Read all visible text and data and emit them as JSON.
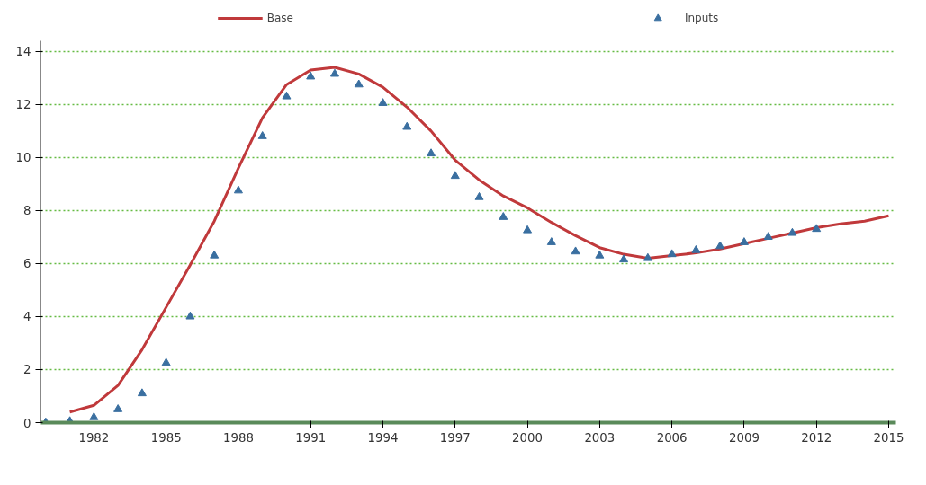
{
  "chart_data": {
    "type": "line",
    "xlim": [
      1979.8,
      2015.3
    ],
    "xticks": [
      1982,
      1985,
      1988,
      1991,
      1994,
      1997,
      2000,
      2003,
      2006,
      2009,
      2012,
      2015
    ],
    "ylim": [
      0,
      14.4
    ],
    "yticks": [
      0,
      2,
      4,
      6,
      8,
      10,
      12,
      14
    ],
    "grid": "y",
    "legend": "top",
    "series": [
      {
        "name": "Base",
        "color": "#c0393b",
        "marker": "none",
        "x": [
          1981,
          1982,
          1983,
          1984,
          1985,
          1986,
          1987,
          1988,
          1989,
          1990,
          1991,
          1992,
          1993,
          1994,
          1995,
          1996,
          1997,
          1998,
          1999,
          2000,
          2001,
          2002,
          2003,
          2004,
          2005,
          2006,
          2007,
          2008,
          2009,
          2010,
          2011,
          2012,
          2013,
          2014,
          2015
        ],
        "values": [
          0.4,
          0.65,
          1.4,
          2.75,
          4.35,
          5.95,
          7.6,
          9.6,
          11.5,
          12.75,
          13.3,
          13.4,
          13.15,
          12.65,
          11.9,
          11.0,
          9.9,
          9.15,
          8.55,
          8.1,
          7.55,
          7.05,
          6.6,
          6.35,
          6.2,
          6.3,
          6.4,
          6.55,
          6.75,
          6.95,
          7.15,
          7.35,
          7.5,
          7.6,
          7.8
        ]
      },
      {
        "name": "Inputs",
        "type": "scatter",
        "color": "#3a6fa0",
        "marker": "triangle",
        "x": [
          1980,
          1981,
          1982,
          1983,
          1984,
          1985,
          1986,
          1987,
          1988,
          1989,
          1990,
          1991,
          1992,
          1993,
          1994,
          1995,
          1996,
          1997,
          1998,
          1999,
          2000,
          2001,
          2002,
          2003,
          2004,
          2005,
          2006,
          2007,
          2008,
          2009,
          2010,
          2011,
          2012
        ],
        "values": [
          0,
          0.05,
          0.2,
          0.5,
          1.1,
          2.25,
          4.0,
          6.3,
          8.75,
          10.8,
          12.3,
          13.05,
          13.15,
          12.75,
          12.05,
          11.15,
          10.15,
          9.3,
          8.5,
          7.75,
          7.25,
          6.8,
          6.45,
          6.3,
          6.15,
          6.2,
          6.35,
          6.5,
          6.65,
          6.8,
          7.0,
          7.15,
          7.3
        ]
      }
    ]
  }
}
